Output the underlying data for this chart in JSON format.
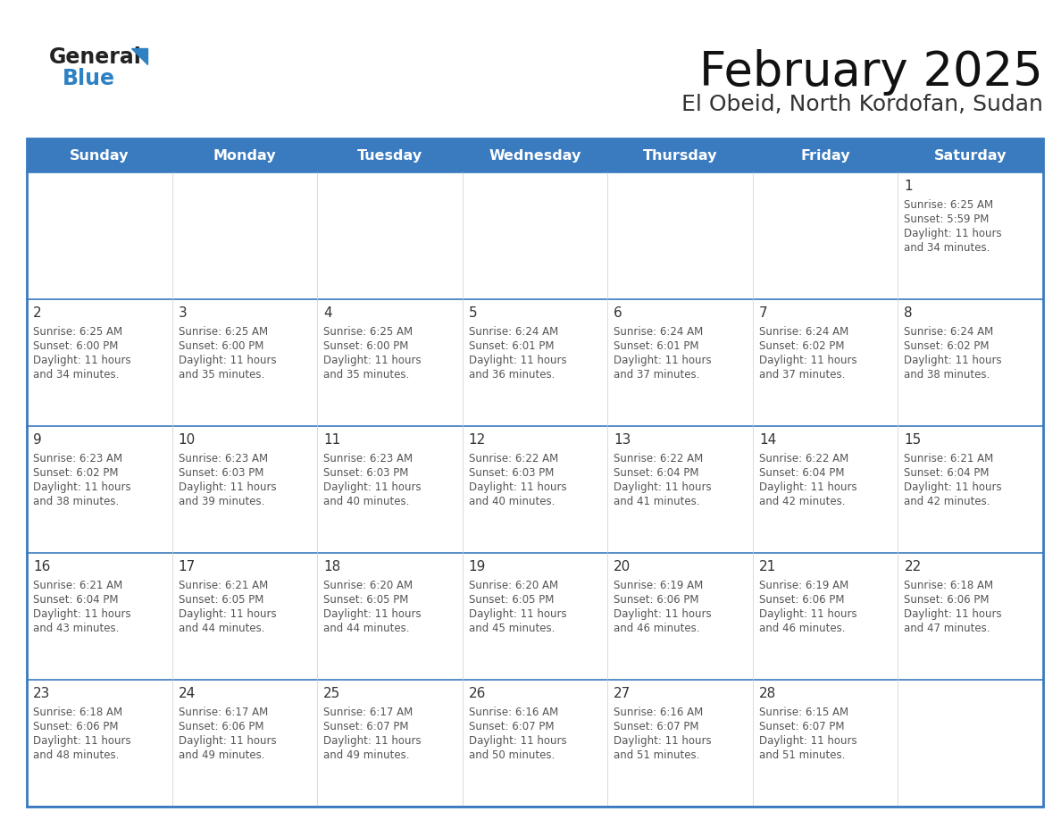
{
  "title": "February 2025",
  "subtitle": "El Obeid, North Kordofan, Sudan",
  "days_of_week": [
    "Sunday",
    "Monday",
    "Tuesday",
    "Wednesday",
    "Thursday",
    "Friday",
    "Saturday"
  ],
  "header_bg": "#3a7abf",
  "header_text": "#ffffff",
  "cell_bg": "#ffffff",
  "row_sep_color": "#3a7abf",
  "outer_border_color": "#3a7abf",
  "text_color": "#555555",
  "day_num_color": "#333333",
  "logo_general_color": "#222222",
  "logo_blue_color": "#2e82c4",
  "calendar_data": [
    [
      {
        "day": null,
        "sunrise": null,
        "sunset": null,
        "daylight": null
      },
      {
        "day": null,
        "sunrise": null,
        "sunset": null,
        "daylight": null
      },
      {
        "day": null,
        "sunrise": null,
        "sunset": null,
        "daylight": null
      },
      {
        "day": null,
        "sunrise": null,
        "sunset": null,
        "daylight": null
      },
      {
        "day": null,
        "sunrise": null,
        "sunset": null,
        "daylight": null
      },
      {
        "day": null,
        "sunrise": null,
        "sunset": null,
        "daylight": null
      },
      {
        "day": 1,
        "sunrise": "6:25 AM",
        "sunset": "5:59 PM",
        "daylight": "11 hours\nand 34 minutes."
      }
    ],
    [
      {
        "day": 2,
        "sunrise": "6:25 AM",
        "sunset": "6:00 PM",
        "daylight": "11 hours\nand 34 minutes."
      },
      {
        "day": 3,
        "sunrise": "6:25 AM",
        "sunset": "6:00 PM",
        "daylight": "11 hours\nand 35 minutes."
      },
      {
        "day": 4,
        "sunrise": "6:25 AM",
        "sunset": "6:00 PM",
        "daylight": "11 hours\nand 35 minutes."
      },
      {
        "day": 5,
        "sunrise": "6:24 AM",
        "sunset": "6:01 PM",
        "daylight": "11 hours\nand 36 minutes."
      },
      {
        "day": 6,
        "sunrise": "6:24 AM",
        "sunset": "6:01 PM",
        "daylight": "11 hours\nand 37 minutes."
      },
      {
        "day": 7,
        "sunrise": "6:24 AM",
        "sunset": "6:02 PM",
        "daylight": "11 hours\nand 37 minutes."
      },
      {
        "day": 8,
        "sunrise": "6:24 AM",
        "sunset": "6:02 PM",
        "daylight": "11 hours\nand 38 minutes."
      }
    ],
    [
      {
        "day": 9,
        "sunrise": "6:23 AM",
        "sunset": "6:02 PM",
        "daylight": "11 hours\nand 38 minutes."
      },
      {
        "day": 10,
        "sunrise": "6:23 AM",
        "sunset": "6:03 PM",
        "daylight": "11 hours\nand 39 minutes."
      },
      {
        "day": 11,
        "sunrise": "6:23 AM",
        "sunset": "6:03 PM",
        "daylight": "11 hours\nand 40 minutes."
      },
      {
        "day": 12,
        "sunrise": "6:22 AM",
        "sunset": "6:03 PM",
        "daylight": "11 hours\nand 40 minutes."
      },
      {
        "day": 13,
        "sunrise": "6:22 AM",
        "sunset": "6:04 PM",
        "daylight": "11 hours\nand 41 minutes."
      },
      {
        "day": 14,
        "sunrise": "6:22 AM",
        "sunset": "6:04 PM",
        "daylight": "11 hours\nand 42 minutes."
      },
      {
        "day": 15,
        "sunrise": "6:21 AM",
        "sunset": "6:04 PM",
        "daylight": "11 hours\nand 42 minutes."
      }
    ],
    [
      {
        "day": 16,
        "sunrise": "6:21 AM",
        "sunset": "6:04 PM",
        "daylight": "11 hours\nand 43 minutes."
      },
      {
        "day": 17,
        "sunrise": "6:21 AM",
        "sunset": "6:05 PM",
        "daylight": "11 hours\nand 44 minutes."
      },
      {
        "day": 18,
        "sunrise": "6:20 AM",
        "sunset": "6:05 PM",
        "daylight": "11 hours\nand 44 minutes."
      },
      {
        "day": 19,
        "sunrise": "6:20 AM",
        "sunset": "6:05 PM",
        "daylight": "11 hours\nand 45 minutes."
      },
      {
        "day": 20,
        "sunrise": "6:19 AM",
        "sunset": "6:06 PM",
        "daylight": "11 hours\nand 46 minutes."
      },
      {
        "day": 21,
        "sunrise": "6:19 AM",
        "sunset": "6:06 PM",
        "daylight": "11 hours\nand 46 minutes."
      },
      {
        "day": 22,
        "sunrise": "6:18 AM",
        "sunset": "6:06 PM",
        "daylight": "11 hours\nand 47 minutes."
      }
    ],
    [
      {
        "day": 23,
        "sunrise": "6:18 AM",
        "sunset": "6:06 PM",
        "daylight": "11 hours\nand 48 minutes."
      },
      {
        "day": 24,
        "sunrise": "6:17 AM",
        "sunset": "6:06 PM",
        "daylight": "11 hours\nand 49 minutes."
      },
      {
        "day": 25,
        "sunrise": "6:17 AM",
        "sunset": "6:07 PM",
        "daylight": "11 hours\nand 49 minutes."
      },
      {
        "day": 26,
        "sunrise": "6:16 AM",
        "sunset": "6:07 PM",
        "daylight": "11 hours\nand 50 minutes."
      },
      {
        "day": 27,
        "sunrise": "6:16 AM",
        "sunset": "6:07 PM",
        "daylight": "11 hours\nand 51 minutes."
      },
      {
        "day": 28,
        "sunrise": "6:15 AM",
        "sunset": "6:07 PM",
        "daylight": "11 hours\nand 51 minutes."
      },
      {
        "day": null,
        "sunrise": null,
        "sunset": null,
        "daylight": null
      }
    ]
  ]
}
